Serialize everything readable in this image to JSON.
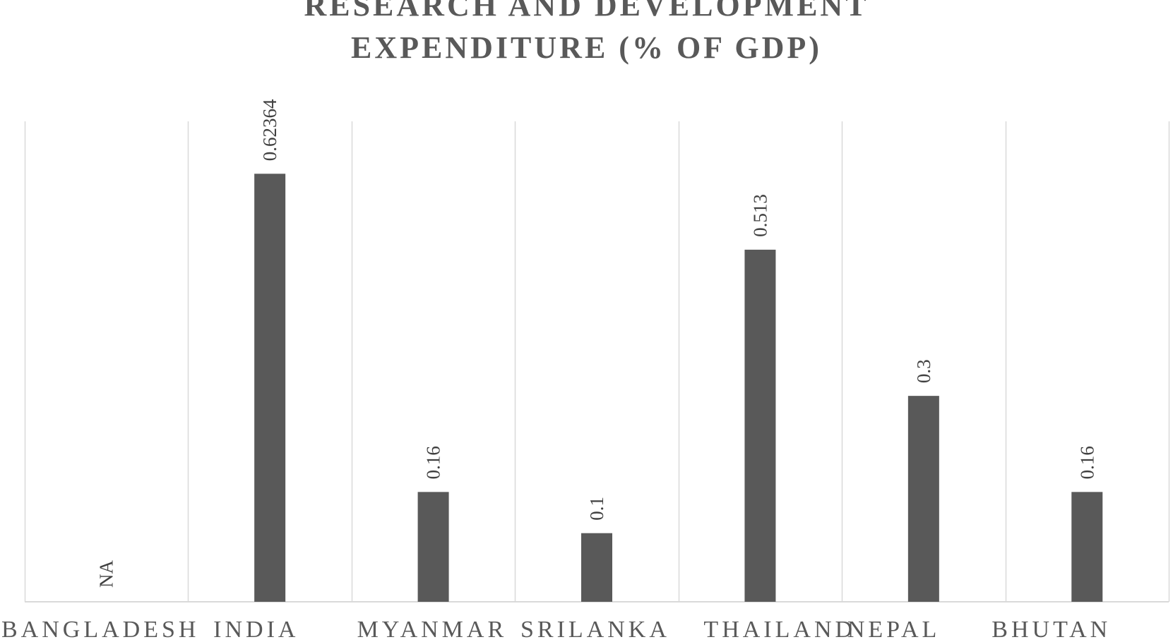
{
  "chart_data": {
    "type": "bar",
    "title_lines": [
      "RESEARCH AND DEVELOPMENT",
      "EXPENDITURE (% OF GDP)"
    ],
    "categories": [
      "BANGLADESH",
      "INDIA",
      "MYANMAR",
      "SRILANKA",
      "THAILAND",
      "NEPAL",
      "BHUTAN"
    ],
    "values": [
      null,
      0.62364,
      0.16,
      0.1,
      0.513,
      0.3,
      0.16
    ],
    "data_labels": [
      "NA",
      "0.62364",
      "0.16",
      "0.1",
      "0.513",
      "0.3",
      "0.16"
    ],
    "ylim": [
      0,
      0.7
    ],
    "grid": "vertical category separators",
    "legend": "none",
    "bar_color": "#595959",
    "grid_color": "#d9d9d9"
  }
}
